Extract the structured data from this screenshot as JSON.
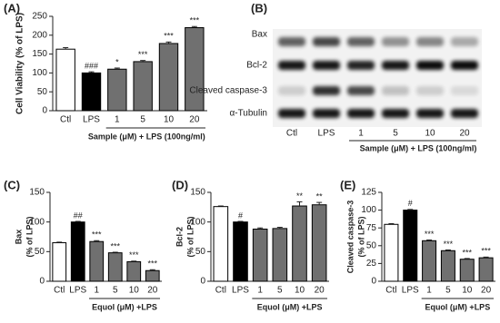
{
  "chart_data": [
    {
      "type": "bar",
      "panel_label": "(A)",
      "ylabel": "Cell Viability (% of LPS)",
      "xlabel": "Sample (μM) + LPS (100ng/ml)",
      "categories": [
        "Ctl",
        "LPS",
        "1",
        "5",
        "10",
        "20"
      ],
      "values": [
        163,
        100,
        110,
        130,
        178,
        220
      ],
      "errors": [
        4,
        3,
        3,
        3,
        4,
        3
      ],
      "annotations": [
        null,
        "###",
        "*",
        "***",
        "***",
        "***"
      ],
      "colors": [
        "#ffffff",
        "#000000",
        "#707070",
        "#707070",
        "#707070",
        "#707070"
      ],
      "ylim": [
        0,
        250
      ],
      "yticks": [
        0,
        50,
        100,
        150,
        200,
        250
      ]
    },
    {
      "type": "bar",
      "panel_label": "(C)",
      "ylabel": [
        "Bax",
        "(% of LPS)"
      ],
      "xlabel": "Equol (μM) +LPS",
      "categories": [
        "Ctl",
        "LPS",
        "1",
        "5",
        "10",
        "20"
      ],
      "values": [
        65,
        100,
        67,
        48,
        33,
        18
      ],
      "errors": [
        1,
        1,
        1.5,
        1,
        1,
        1.5
      ],
      "annotations": [
        null,
        "##",
        "***",
        "***",
        "***",
        "***"
      ],
      "colors": [
        "#ffffff",
        "#000000",
        "#707070",
        "#707070",
        "#707070",
        "#707070"
      ],
      "ylim": [
        0,
        150
      ],
      "yticks": [
        0,
        50,
        100,
        150
      ]
    },
    {
      "type": "bar",
      "panel_label": "(D)",
      "ylabel": [
        "Bcl-2",
        "(% of LPS)"
      ],
      "xlabel": "Equol (μM) +LPS",
      "categories": [
        "Ctl",
        "LPS",
        "1",
        "5",
        "10",
        "20"
      ],
      "values": [
        126,
        100,
        88,
        89,
        127,
        129
      ],
      "errors": [
        1,
        1,
        2,
        2,
        7,
        4
      ],
      "annotations": [
        null,
        "#",
        null,
        null,
        "**",
        "**"
      ],
      "colors": [
        "#ffffff",
        "#000000",
        "#707070",
        "#707070",
        "#707070",
        "#707070"
      ],
      "ylim": [
        0,
        150
      ],
      "yticks": [
        0,
        50,
        100,
        150
      ]
    },
    {
      "type": "bar",
      "panel_label": "(E)",
      "ylabel": [
        "Cleaved caspase-3",
        "(% of LPS)"
      ],
      "xlabel": "Equol (μM) +LPS",
      "categories": [
        "Ctl",
        "LPS",
        "1",
        "5",
        "10",
        "20"
      ],
      "values": [
        80,
        100,
        57,
        43,
        31,
        33
      ],
      "errors": [
        1,
        1,
        1,
        1,
        1,
        1
      ],
      "annotations": [
        null,
        "#",
        "***",
        "***",
        "***",
        "***"
      ],
      "colors": [
        "#ffffff",
        "#000000",
        "#707070",
        "#707070",
        "#707070",
        "#707070"
      ],
      "ylim": [
        0,
        125
      ],
      "yticks": [
        0,
        25,
        50,
        75,
        100,
        125
      ]
    }
  ],
  "blot": {
    "panel_label": "(B)",
    "rows": [
      "Bax",
      "Bcl-2",
      "Cleaved caspase-3",
      "α-Tubulin"
    ],
    "lanes": [
      "Ctl",
      "LPS",
      "1",
      "5",
      "10",
      "20"
    ],
    "xlabel": "Sample (μM) + LPS (100ng/ml)"
  }
}
